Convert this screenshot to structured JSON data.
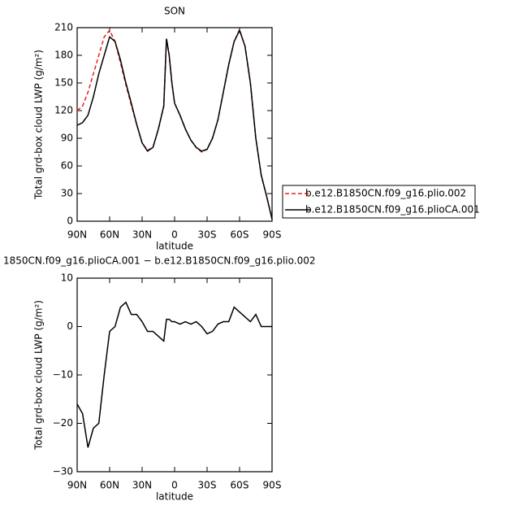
{
  "chart_data": [
    {
      "type": "line",
      "title": "SON",
      "xlabel": "latitude",
      "ylabel": "Total grd-box cloud LWP (g/m²)",
      "x": [
        90,
        85,
        80,
        75,
        70,
        65,
        60,
        55,
        50,
        45,
        40,
        35,
        30,
        25,
        20,
        15,
        10,
        7.5,
        5,
        2.5,
        0,
        -5,
        -10,
        -15,
        -20,
        -25,
        -30,
        -35,
        -40,
        -45,
        -50,
        -55,
        -60,
        -65,
        -70,
        -75,
        -80,
        -85,
        -90
      ],
      "xlim": [
        90,
        -90
      ],
      "xticks": [
        {
          "value": 90,
          "label": "90N"
        },
        {
          "value": 60,
          "label": "60N"
        },
        {
          "value": 30,
          "label": "30N"
        },
        0,
        {
          "value": -30,
          "label": "30S"
        },
        {
          "value": -60,
          "label": "60S"
        },
        {
          "value": -90,
          "label": "90S"
        }
      ],
      "ylim": [
        0,
        210
      ],
      "yticks": [
        0,
        30,
        60,
        90,
        120,
        150,
        180,
        210
      ],
      "legend": "outside-right",
      "series": [
        {
          "name": "b.e12.B1850CN.f09_g16.plio.002",
          "color": "#e8211d",
          "line_style": "dashed",
          "values": [
            120,
            125,
            140,
            160,
            180,
            200,
            207,
            195,
            172,
            148,
            126,
            105,
            85,
            77,
            80,
            100,
            125,
            198,
            180,
            150,
            128,
            115,
            100,
            88,
            80,
            75,
            78,
            90,
            110,
            140,
            170,
            195,
            208,
            190,
            150,
            90,
            50,
            27,
            3
          ]
        },
        {
          "name": "b.e12.B1850CN.f09_g16.plioCA.001",
          "color": "#000000",
          "line_style": "solid",
          "values": [
            104,
            107,
            115,
            135,
            160,
            180,
            200,
            195,
            175,
            150,
            128,
            105,
            85,
            76,
            80,
            100,
            125,
            198,
            180,
            150,
            128,
            115,
            100,
            88,
            80,
            76,
            78,
            90,
            110,
            140,
            170,
            195,
            207,
            190,
            150,
            90,
            50,
            27,
            2
          ]
        }
      ]
    },
    {
      "type": "line",
      "title": "1850CN.f09_g16.plioCA.001 − b.e12.B1850CN.f09_g16.plio.002",
      "xlabel": "latitude",
      "ylabel": "Total grd-box cloud LWP (g/m²)",
      "x": [
        90,
        85,
        80,
        75,
        70,
        65,
        60,
        55,
        50,
        45,
        40,
        35,
        30,
        25,
        20,
        15,
        10,
        7.5,
        5,
        2.5,
        0,
        -5,
        -10,
        -15,
        -20,
        -25,
        -30,
        -35,
        -40,
        -45,
        -50,
        -55,
        -60,
        -65,
        -70,
        -75,
        -80,
        -85,
        -90
      ],
      "xlim": [
        90,
        -90
      ],
      "xticks": [
        {
          "value": 90,
          "label": "90N"
        },
        {
          "value": 60,
          "label": "60N"
        },
        {
          "value": 30,
          "label": "30N"
        },
        0,
        {
          "value": -30,
          "label": "30S"
        },
        {
          "value": -60,
          "label": "60S"
        },
        {
          "value": -90,
          "label": "90S"
        }
      ],
      "ylim": [
        -30,
        10
      ],
      "yticks": [
        {
          "value": -30,
          "label": "−30"
        },
        {
          "value": -20,
          "label": "−20"
        },
        {
          "value": -10,
          "label": "−10"
        },
        0,
        10
      ],
      "series": [
        {
          "color": "#000000",
          "line_style": "solid",
          "values": [
            -16,
            -18,
            -25,
            -21,
            -20,
            -10,
            -1,
            0,
            4,
            5,
            2.5,
            2.5,
            1,
            -1,
            -1,
            -2,
            -3,
            1.5,
            1.5,
            1,
            1,
            0.5,
            1,
            0.5,
            1,
            0,
            -1.5,
            -1,
            0.5,
            1,
            1,
            4,
            3,
            2,
            1,
            2.5,
            0,
            0,
            0
          ]
        }
      ]
    }
  ]
}
